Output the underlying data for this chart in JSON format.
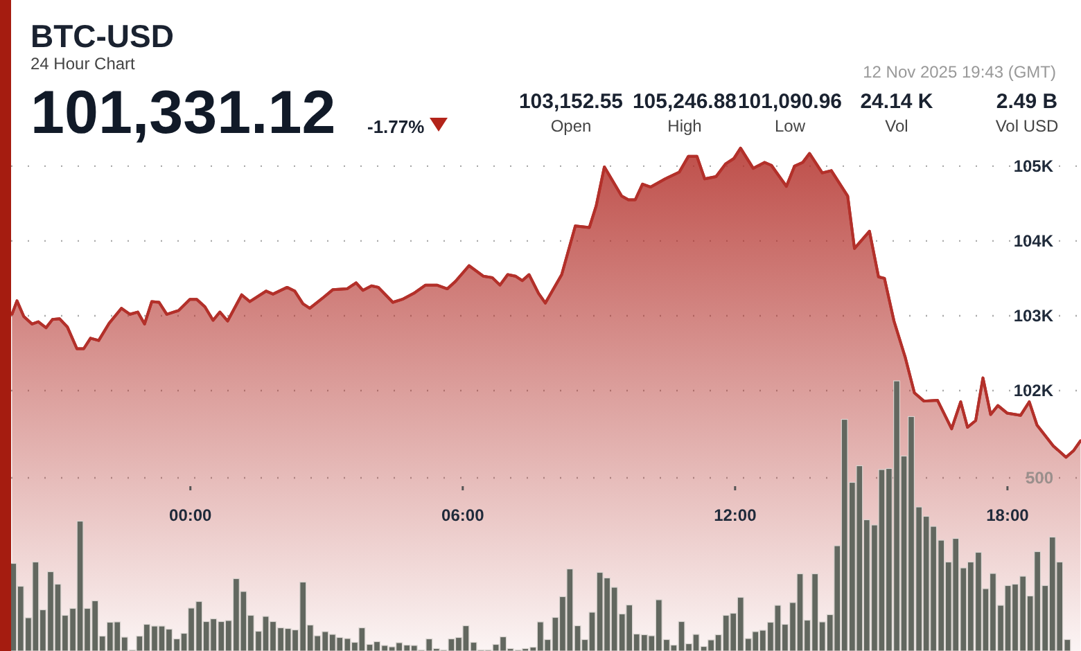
{
  "chart_data": {
    "type": "area",
    "title": "BTC-USD",
    "subtitle": "24 Hour Chart",
    "annotations": [
      "101,331.12",
      "-1.77%",
      "12 Nov 2025 19:43 (GMT)",
      "103,152.55",
      "Open",
      "105,246.88",
      "High",
      "101,090.96",
      "Low",
      "24.14 K",
      "Vol",
      "2.49 B",
      "Vol USD"
    ],
    "xlim": [
      -3.95,
      19.62
    ],
    "xticks": [
      {
        "value": 0,
        "label": "00:00"
      },
      {
        "value": 6,
        "label": "06:00"
      },
      {
        "value": 12,
        "label": "12:00"
      },
      {
        "value": 18,
        "label": "18:00"
      }
    ],
    "ylim": [
      98520,
      107220
    ],
    "yticks": [
      {
        "value": 102000,
        "label": "102K"
      },
      {
        "value": 103000,
        "label": "103K"
      },
      {
        "value": 104000,
        "label": "104K"
      },
      {
        "value": 105000,
        "label": "105K"
      }
    ],
    "y2lim": [
      0,
      1880
    ],
    "y2ticks": [
      500
    ],
    "grid": "y",
    "series": [
      {
        "color": "#b3302a",
        "x": [
          -3.93,
          -3.82,
          -3.67,
          -3.49,
          -3.35,
          -3.18,
          -3.04,
          -2.88,
          -2.71,
          -2.5,
          -2.35,
          -2.2,
          -2.02,
          -1.79,
          -1.52,
          -1.33,
          -1.16,
          -1.01,
          -0.85,
          -0.69,
          -0.52,
          -0.26,
          -0.01,
          0.14,
          0.32,
          0.5,
          0.65,
          0.82,
          1.13,
          1.31,
          1.67,
          1.82,
          2.13,
          2.3,
          2.48,
          2.63,
          2.94,
          3.14,
          3.45,
          3.65,
          3.8,
          3.99,
          4.14,
          4.46,
          4.67,
          4.92,
          5.18,
          5.43,
          5.66,
          5.84,
          6.14,
          6.45,
          6.65,
          6.82,
          6.99,
          7.16,
          7.31,
          7.46,
          7.67,
          7.82,
          8.18,
          8.48,
          8.79,
          8.94,
          9.12,
          9.5,
          9.65,
          9.8,
          9.96,
          10.14,
          10.46,
          10.77,
          10.97,
          11.16,
          11.33,
          11.58,
          11.79,
          11.97,
          12.12,
          12.4,
          12.65,
          12.8,
          13.13,
          13.31,
          13.49,
          13.64,
          13.92,
          14.12,
          14.48,
          14.63,
          14.96,
          15.16,
          15.29,
          15.5,
          15.75,
          15.95,
          16.16,
          16.46,
          16.77,
          16.97,
          17.12,
          17.3,
          17.46,
          17.63,
          17.79,
          17.99,
          18.29,
          18.48,
          18.65,
          19.01,
          19.29,
          19.46,
          19.61
        ],
        "values": [
          103020,
          103200,
          102990,
          102890,
          102920,
          102840,
          102950,
          102960,
          102850,
          102560,
          102560,
          102700,
          102670,
          102900,
          103100,
          103020,
          103050,
          102890,
          103190,
          103180,
          103020,
          103070,
          103220,
          103220,
          103120,
          102940,
          103050,
          102930,
          103280,
          103190,
          103330,
          103290,
          103380,
          103330,
          103160,
          103100,
          103250,
          103350,
          103360,
          103440,
          103340,
          103400,
          103380,
          103180,
          103220,
          103300,
          103410,
          103410,
          103360,
          103460,
          103670,
          103530,
          103510,
          103410,
          103550,
          103530,
          103470,
          103550,
          103300,
          103170,
          103550,
          104200,
          104180,
          104470,
          104990,
          104600,
          104550,
          104550,
          104760,
          104720,
          104830,
          104920,
          105130,
          105130,
          104830,
          104860,
          105030,
          105100,
          105240,
          104970,
          105050,
          105010,
          104730,
          105000,
          105050,
          105170,
          104910,
          104940,
          104600,
          103900,
          104130,
          103520,
          103500,
          102930,
          102440,
          101970,
          101860,
          101870,
          101490,
          101850,
          101510,
          101600,
          102170,
          101680,
          101800,
          101700,
          101670,
          101850,
          101540,
          101260,
          101110,
          101200,
          101330
        ]
      },
      {
        "type": "bar",
        "axis": "y2",
        "color": "#62675f",
        "x": [
          -3.9,
          -3.74,
          -3.57,
          -3.41,
          -3.25,
          -3.08,
          -2.92,
          -2.76,
          -2.59,
          -2.43,
          -2.27,
          -2.1,
          -1.94,
          -1.77,
          -1.61,
          -1.45,
          -1.28,
          -1.12,
          -0.96,
          -0.79,
          -0.63,
          -0.47,
          -0.3,
          -0.14,
          0.02,
          0.19,
          0.35,
          0.51,
          0.68,
          0.84,
          1.01,
          1.17,
          1.33,
          1.5,
          1.66,
          1.82,
          1.99,
          2.15,
          2.31,
          2.48,
          2.64,
          2.8,
          2.97,
          3.13,
          3.29,
          3.46,
          3.62,
          3.78,
          3.95,
          4.11,
          4.28,
          4.44,
          4.6,
          4.77,
          4.93,
          5.09,
          5.26,
          5.42,
          5.58,
          5.75,
          5.91,
          6.07,
          6.24,
          6.4,
          6.56,
          6.73,
          6.89,
          7.05,
          7.22,
          7.38,
          7.55,
          7.71,
          7.87,
          8.04,
          8.2,
          8.36,
          8.53,
          8.69,
          8.85,
          9.02,
          9.18,
          9.34,
          9.51,
          9.67,
          9.83,
          10,
          10.16,
          10.32,
          10.49,
          10.65,
          10.82,
          10.98,
          11.14,
          11.31,
          11.47,
          11.63,
          11.8,
          11.96,
          12.12,
          12.29,
          12.45,
          12.61,
          12.78,
          12.94,
          13.1,
          13.27,
          13.43,
          13.59,
          13.76,
          13.92,
          14.09,
          14.25,
          14.41,
          14.58,
          14.74,
          14.9,
          15.07,
          15.23,
          15.39,
          15.56,
          15.72,
          15.88,
          16.05,
          16.21,
          16.37,
          16.54,
          16.7,
          16.86,
          17.03,
          17.19,
          17.36,
          17.52,
          17.68,
          17.85,
          18.01,
          18.17,
          18.34,
          18.5,
          18.66,
          18.83,
          18.99,
          19.15,
          19.32
        ],
        "values": [
          253,
          187,
          96,
          257,
          119,
          229,
          193,
          103,
          123,
          375,
          123,
          145,
          43,
          83,
          84,
          40,
          3,
          43,
          77,
          72,
          72,
          63,
          35,
          51,
          124,
          143,
          85,
          93,
          85,
          88,
          209,
          172,
          103,
          57,
          100,
          85,
          67,
          65,
          61,
          199,
          75,
          44,
          56,
          48,
          39,
          36,
          25,
          67,
          19,
          27,
          16,
          12,
          24,
          17,
          16,
          3,
          35,
          7,
          3,
          35,
          39,
          73,
          25,
          3,
          3,
          19,
          41,
          7,
          3,
          7,
          11,
          84,
          33,
          97,
          157,
          237,
          73,
          33,
          112,
          227,
          211,
          184,
          107,
          133,
          49,
          47,
          44,
          148,
          33,
          17,
          85,
          21,
          48,
          13,
          32,
          47,
          103,
          109,
          155,
          36,
          56,
          60,
          83,
          132,
          77,
          140,
          223,
          89,
          223,
          84,
          105,
          304,
          669,
          487,
          535,
          379,
          364,
          524,
          527,
          780,
          563,
          677,
          416,
          389,
          360,
          320,
          257,
          325,
          240,
          257,
          285,
          180,
          224,
          132,
          189,
          193,
          216,
          159,
          287,
          189,
          329,
          257,
          33
        ]
      }
    ]
  }
}
